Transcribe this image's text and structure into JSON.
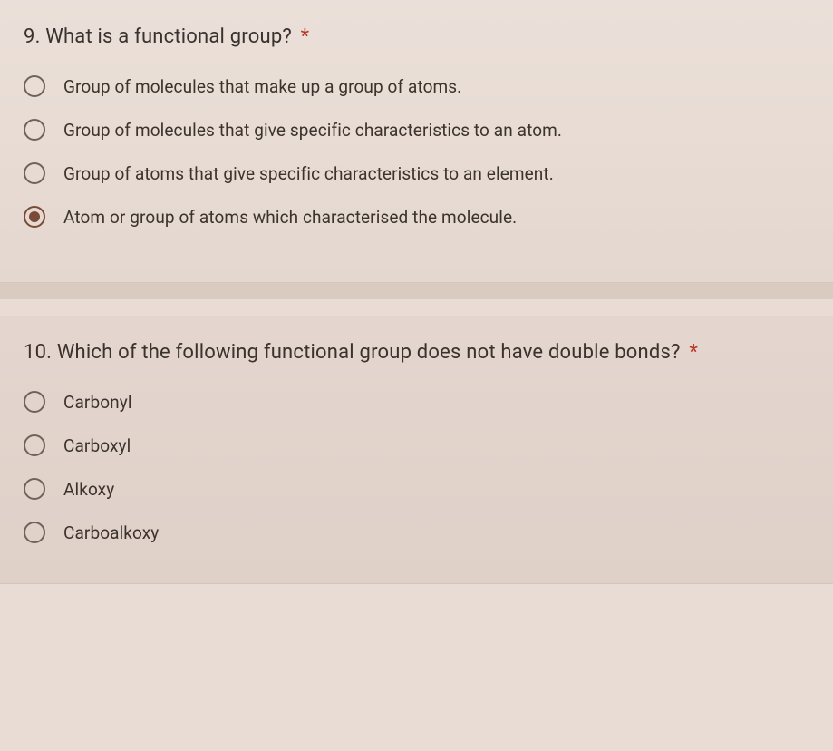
{
  "questions": [
    {
      "number": "9.",
      "text": "What is a functional group?",
      "required": true,
      "options": [
        {
          "label": "Group of molecules that make up a group of atoms.",
          "selected": false
        },
        {
          "label": "Group of molecules that give specific characteristics to an atom.",
          "selected": false
        },
        {
          "label": "Group of atoms that give specific characteristics to an element.",
          "selected": false
        },
        {
          "label": "Atom or group of atoms which characterised the molecule.",
          "selected": true
        }
      ]
    },
    {
      "number": "10.",
      "text": "Which of the following functional group does not have double bonds?",
      "required": true,
      "options": [
        {
          "label": "Carbonyl",
          "selected": false
        },
        {
          "label": "Carboxyl",
          "selected": false
        },
        {
          "label": "Alkoxy",
          "selected": false
        },
        {
          "label": "Carboalkoxy",
          "selected": false
        }
      ]
    }
  ],
  "asterisk": "*",
  "styling": {
    "background_color": "#e8dcd4",
    "card_bg_top": "#ebe0d9",
    "card_bg_bottom": "#e4d7cf",
    "text_color": "#3a322e",
    "radio_border": "#6f625a",
    "radio_selected": "#7a4a36",
    "asterisk_color": "#b73224",
    "title_fontsize": 22,
    "option_fontsize": 19
  }
}
